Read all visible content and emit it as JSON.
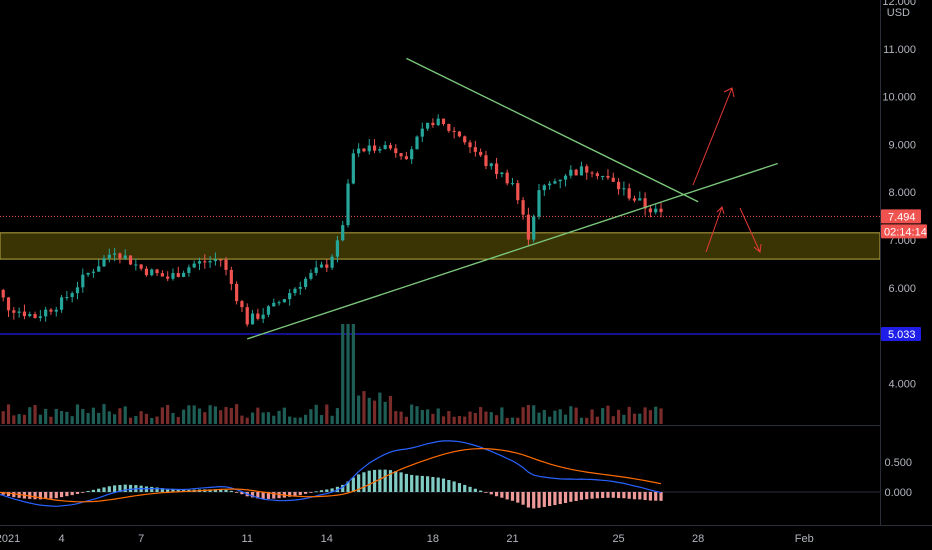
{
  "currency": "USD",
  "colors": {
    "background": "#000000",
    "up": "#26a69a",
    "down": "#ef5350",
    "trendline": "#7bc67b",
    "zone_fill": "#3a3404",
    "zone_border": "#b5a642",
    "support_line": "#1e1ee8",
    "last_price_tag": "#ef5350",
    "macd_line": "#2962ff",
    "signal_line": "#ff6d00",
    "arrow": "#e53935",
    "separator": "#2a2e39"
  },
  "price_axis": {
    "ticks": [
      "4.000",
      "6.000",
      "7.000",
      "8.000",
      "9.000",
      "10.000",
      "11.000",
      "12.000"
    ],
    "last_price": "7.494",
    "countdown": "02:14:14",
    "support_price": "5.033"
  },
  "macd_axis": {
    "ticks": [
      "0.500",
      "0.000"
    ]
  },
  "time_axis": {
    "ticks": [
      "2021",
      "4",
      "7",
      "11",
      "14",
      "18",
      "21",
      "25",
      "28",
      "Feb"
    ]
  },
  "chart_data": {
    "type": "candlestick",
    "timeframe_note": "",
    "ylim": [
      3.3,
      12.0
    ],
    "x_range_days": [
      1,
      33
    ],
    "zone": [
      6.6,
      7.15
    ],
    "support": 5.033,
    "last_price": 7.494,
    "upper_trendline": {
      "from": [
        17.0,
        10.8
      ],
      "to": [
        28.0,
        7.8
      ]
    },
    "lower_trendline": {
      "from": [
        11.0,
        4.93
      ],
      "to": [
        31.0,
        8.6
      ]
    },
    "anchors": [
      [
        1,
        6.4
      ],
      [
        2,
        5.6
      ],
      [
        3,
        5.4
      ],
      [
        4,
        5.7
      ],
      [
        5,
        6.3
      ],
      [
        6,
        6.8
      ],
      [
        7,
        6.4
      ],
      [
        8,
        6.2
      ],
      [
        9,
        6.5
      ],
      [
        10,
        6.6
      ],
      [
        11,
        5.3
      ],
      [
        12,
        5.6
      ],
      [
        13,
        6.1
      ],
      [
        14,
        6.5
      ],
      [
        14.5,
        7.0
      ],
      [
        15,
        8.8
      ],
      [
        16,
        9.0
      ],
      [
        17,
        8.8
      ],
      [
        18,
        9.5
      ],
      [
        19,
        9.2
      ],
      [
        20,
        8.6
      ],
      [
        21,
        8.2
      ],
      [
        21.6,
        7.1
      ],
      [
        22,
        8.0
      ],
      [
        23,
        8.4
      ],
      [
        24,
        8.5
      ],
      [
        25,
        8.1
      ],
      [
        26,
        7.7
      ],
      [
        26.7,
        7.5
      ]
    ],
    "macd_ylim": [
      -0.25,
      1.05
    ]
  },
  "annotations": {
    "arrows": [
      "up-breakout",
      "down-breakdown",
      "bounce-up",
      "drop-down"
    ]
  }
}
